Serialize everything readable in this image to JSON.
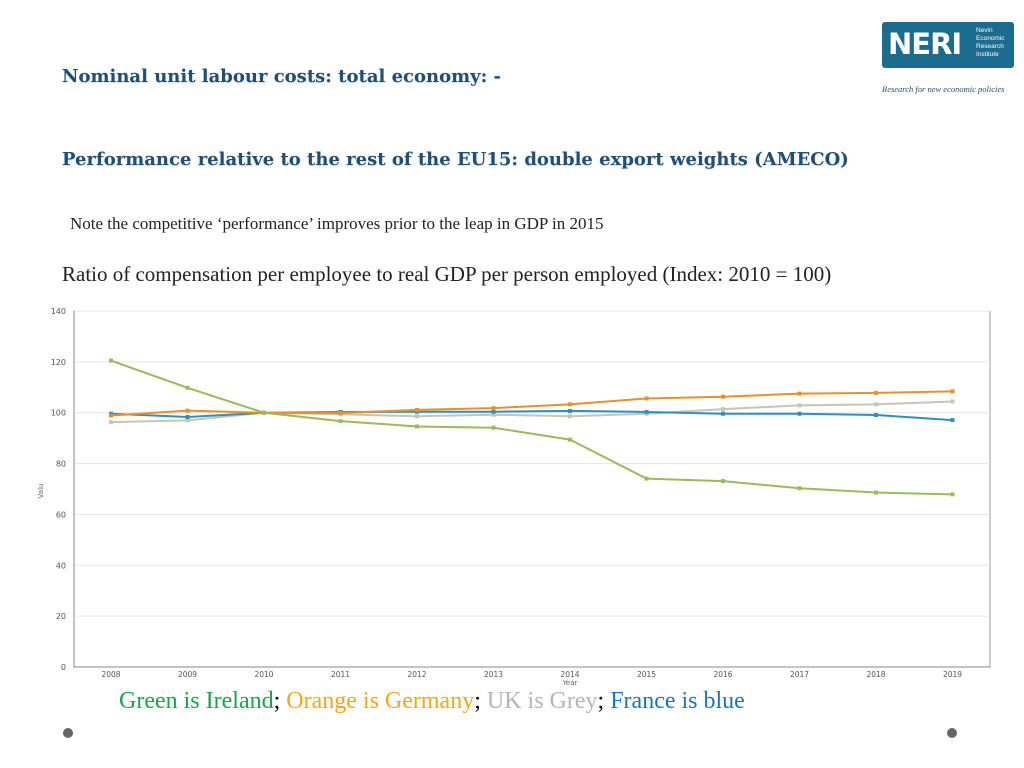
{
  "header": {
    "title_line1": "Nominal unit labour costs: total economy: -",
    "title_line2": "Performance relative to the rest of the EU15: double export weights (AMECO)",
    "note": "Note the competitive ‘performance’ improves prior to the leap in GDP in 2015",
    "subtitle": "Ratio of compensation per employee to real GDP per person employed (Index: 2010 = 100)"
  },
  "logo": {
    "main": "NERI",
    "lines": [
      "Nevin",
      "Economic",
      "Research",
      "Institute"
    ],
    "tagline": "Research for new economic policies",
    "color": "#1b6c8e"
  },
  "legend": {
    "ireland": "Green is Ireland",
    "germany": "Orange is Germany",
    "uk": "UK is Grey",
    "france": "France is blue",
    "separator": ";",
    "colors": {
      "ireland": "#1aa34a",
      "germany": "#f0a818",
      "uk": "#b5b5b5",
      "france": "#1a75b8"
    }
  },
  "chart_data": {
    "type": "line",
    "xlabel": "Year",
    "ylabel": "Valu",
    "ylim": [
      0,
      140
    ],
    "yticks": [
      0,
      20,
      40,
      60,
      80,
      100,
      120,
      140
    ],
    "grid": true,
    "x": [
      "2008",
      "2009",
      "2010",
      "2011",
      "2012",
      "2013",
      "2014",
      "2015",
      "2016",
      "2017",
      "2018",
      "2019"
    ],
    "series": [
      {
        "key": "uk",
        "color": "#c3c7b8",
        "values": [
          96.3,
          97.0,
          100.0,
          99.4,
          98.6,
          99.2,
          98.6,
          99.6,
          101.4,
          102.9,
          103.3,
          104.4
        ]
      },
      {
        "key": "france",
        "color": "#2f8fc4",
        "values": [
          99.6,
          98.3,
          100.0,
          100.3,
          100.4,
          100.4,
          100.7,
          100.3,
          99.6,
          99.6,
          99.1,
          97.1
        ]
      },
      {
        "key": "germany",
        "color": "#e8902a",
        "values": [
          98.9,
          100.8,
          100.0,
          99.9,
          101.1,
          101.8,
          103.3,
          105.6,
          106.3,
          107.5,
          107.8,
          108.4
        ]
      },
      {
        "key": "ireland",
        "color": "#9cba5a",
        "values": [
          120.5,
          109.8,
          100.0,
          96.7,
          94.6,
          94.1,
          89.4,
          74.1,
          73.1,
          70.3,
          68.6,
          67.9
        ]
      }
    ]
  }
}
